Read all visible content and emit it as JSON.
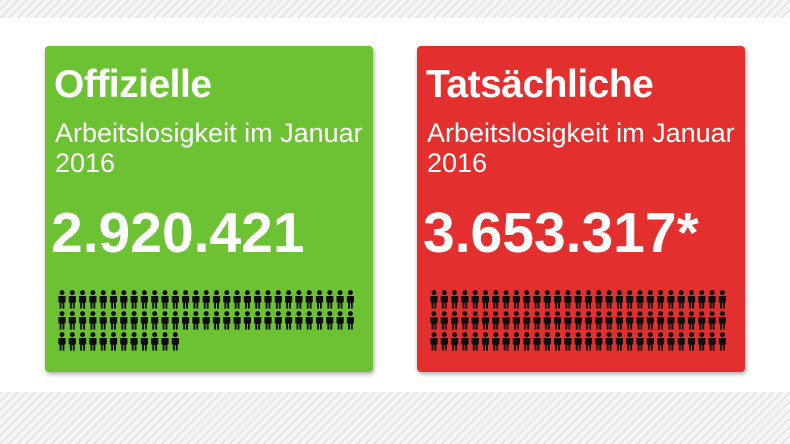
{
  "colors": {
    "official_card": "#6cc232",
    "actual_card": "#e3302e",
    "people_icon": "#0d0d0d"
  },
  "official": {
    "title": "Offizielle",
    "subtitle": "Arbeitslosigkeit im Januar 2016",
    "value": "2.920.421",
    "people_icon": "person-icon"
  },
  "actual": {
    "title": "Tatsächliche",
    "subtitle": "Arbeitslosigkeit im Januar 2016",
    "value": "3.653.317*",
    "people_icon": "person-icon"
  }
}
